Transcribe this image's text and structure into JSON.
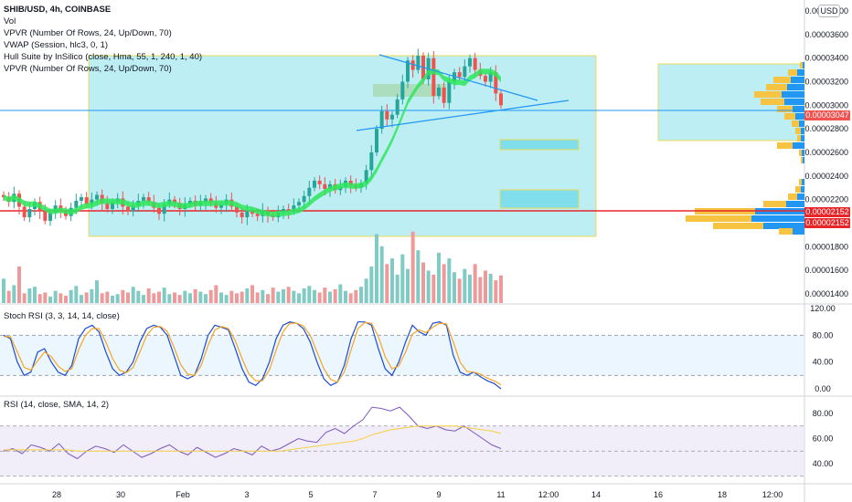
{
  "header": {
    "symbol_line": "SHIB/USD, 4h, COINBASE",
    "indicators": [
      "Vol",
      "VPVR (Number Of Rows, 24, Up/Down, 70)",
      "VWAP (Session, hlc3, 0, 1)",
      "Hull Suite by InSilico (close, Hma, 55, 1, 240, 1, 40)",
      "VPVR (Number Of Rows, 24, Up/Down, 70)"
    ]
  },
  "currency_badge": "USD",
  "price_tags": {
    "current": "0.00003047",
    "line1": "0.00002152",
    "line2": "0.00002152"
  },
  "colors": {
    "up": "#26a69a",
    "down": "#ef5350",
    "hull": "#2ee65a",
    "zone_fill": "#b2ebf2",
    "zone_border": "#e8dc5a",
    "trend": "#2196f3",
    "stoch_k": "#1e4bd2",
    "stoch_d": "#f5a623",
    "rsi": "#7e57c2",
    "rsi_ma": "#f5d142"
  },
  "chart_data": [
    {
      "type": "candlestick",
      "title": "SHIB/USD, 4h, COINBASE",
      "y_ticks": [
        "0.00003800",
        "0.00003600",
        "0.00003400",
        "0.00003200",
        "0.00003000",
        "0.00002800",
        "0.00002600",
        "0.00002400",
        "0.00002200",
        "0.00002000",
        "0.00001800",
        "0.00001600",
        "0.00001400"
      ],
      "x_ticks": [
        "28",
        "30",
        "Feb",
        "3",
        "5",
        "7",
        "9",
        "11",
        "12:00",
        "14",
        "16",
        "18",
        "12:00"
      ],
      "ylim": [
        1.34e-05,
        3.98e-05
      ],
      "close": [
        2.22,
        2.18,
        2.25,
        2.14,
        2.05,
        2.12,
        2.18,
        2.1,
        2.02,
        2.09,
        2.15,
        2.11,
        2.06,
        2.13,
        2.19,
        2.22,
        2.16,
        2.2,
        2.24,
        2.17,
        2.12,
        2.18,
        2.21,
        2.14,
        2.1,
        2.15,
        2.19,
        2.22,
        2.18,
        2.13,
        2.08,
        2.16,
        2.2,
        2.17,
        2.12,
        2.16,
        2.19,
        2.15,
        2.18,
        2.21,
        2.17,
        2.13,
        2.16,
        2.2,
        2.14,
        2.09,
        2.05,
        2.1,
        2.08,
        2.06,
        2.11,
        2.07,
        2.05,
        2.09,
        2.12,
        2.1,
        2.15,
        2.18,
        2.23,
        2.3,
        2.36,
        2.33,
        2.29,
        2.33,
        2.28,
        2.31,
        2.36,
        2.32,
        2.3,
        2.34,
        2.45,
        2.6,
        2.8,
        2.95,
        2.88,
        2.92,
        3.05,
        3.2,
        3.38,
        3.3,
        3.42,
        3.22,
        3.4,
        3.08,
        3.15,
        3.02,
        3.2,
        3.28,
        3.24,
        3.33,
        3.4,
        3.3,
        3.25,
        3.2,
        3.28,
        3.1,
        3.0
      ],
      "current_price": 3.047e-05,
      "horizontal_line": 2.152e-05,
      "volume": [
        3.0,
        1.5,
        2.2,
        4.5,
        1.2,
        1.8,
        2.0,
        1.1,
        1.3,
        0.8,
        1.5,
        1.2,
        0.9,
        1.6,
        2.1,
        1.0,
        1.3,
        1.7,
        2.8,
        1.2,
        1.4,
        0.9,
        1.1,
        1.6,
        1.3,
        2.0,
        1.5,
        1.0,
        1.8,
        1.2,
        1.4,
        1.9,
        1.1,
        1.3,
        1.0,
        1.5,
        1.2,
        1.7,
        1.4,
        1.1,
        1.6,
        2.2,
        1.3,
        1.0,
        1.5,
        1.2,
        1.4,
        1.8,
        2.2,
        1.3,
        1.6,
        1.1,
        1.9,
        1.4,
        1.7,
        2.0,
        1.5,
        1.2,
        1.8,
        2.1,
        1.6,
        1.3,
        1.9,
        1.4,
        1.7,
        2.3,
        1.5,
        1.2,
        1.6,
        2.0,
        3.0,
        4.5,
        8.5,
        7.0,
        4.8,
        5.5,
        3.5,
        6.0,
        4.2,
        8.8,
        6.5,
        5.0,
        4.0,
        3.5,
        6.2,
        4.8,
        5.5,
        3.8,
        3.0,
        4.2,
        3.5,
        4.8,
        3.2,
        4.0,
        3.6,
        2.8,
        3.4
      ]
    },
    {
      "type": "line",
      "title": "Stoch RSI (3, 3, 14, 14, close)",
      "y_ticks": [
        "120.00",
        "80.00",
        "40.00",
        "0.00"
      ],
      "ylim": [
        -5,
        125
      ],
      "series": [
        {
          "values": [
            80,
            75,
            40,
            20,
            25,
            55,
            60,
            40,
            25,
            20,
            35,
            75,
            90,
            95,
            85,
            55,
            30,
            20,
            25,
            40,
            70,
            90,
            95,
            92,
            80,
            50,
            20,
            15,
            20,
            45,
            80,
            95,
            92,
            88,
            60,
            30,
            10,
            5,
            15,
            40,
            75,
            95,
            100,
            98,
            90,
            70,
            40,
            15,
            5,
            10,
            35,
            75,
            100,
            100,
            95,
            60,
            30,
            20,
            40,
            70,
            95,
            85,
            80,
            98,
            100,
            95,
            50,
            25,
            20,
            25,
            18,
            12,
            8,
            0
          ]
        },
        {
          "values": [
            78,
            78,
            55,
            32,
            28,
            42,
            55,
            48,
            34,
            26,
            30,
            58,
            80,
            90,
            90,
            70,
            45,
            28,
            24,
            32,
            55,
            80,
            92,
            93,
            86,
            62,
            36,
            22,
            20,
            35,
            65,
            88,
            93,
            90,
            72,
            45,
            22,
            12,
            12,
            28,
            58,
            85,
            98,
            98,
            94,
            80,
            55,
            30,
            14,
            10,
            25,
            58,
            90,
            99,
            98,
            78,
            48,
            30,
            34,
            55,
            82,
            88,
            84,
            92,
            98,
            97,
            70,
            40,
            26,
            25,
            22,
            16,
            12,
            6
          ]
        }
      ]
    },
    {
      "type": "line",
      "title": "RSI (14, close, SMA, 14, 2)",
      "y_ticks": [
        "80.00",
        "60.00",
        "40.00"
      ],
      "ylim": [
        31,
        87
      ],
      "series": [
        {
          "values": [
            50,
            52,
            48,
            55,
            53,
            50,
            56,
            48,
            44,
            50,
            54,
            52,
            49,
            55,
            50,
            45,
            48,
            52,
            55,
            50,
            47,
            53,
            49,
            45,
            48,
            52,
            50,
            47,
            54,
            50,
            52,
            56,
            60,
            58,
            57,
            65,
            68,
            64,
            70,
            75,
            85,
            84,
            82,
            85,
            78,
            70,
            68,
            70,
            67,
            66,
            70,
            65,
            60,
            55,
            52
          ]
        },
        {
          "values": [
            51,
            51,
            51,
            51,
            51,
            51,
            51,
            51,
            50,
            50,
            50,
            50,
            50,
            50,
            50,
            50,
            50,
            50,
            50,
            50,
            50,
            50,
            50,
            50,
            50,
            50,
            50,
            50,
            50,
            50,
            50,
            51,
            52,
            53,
            54,
            55,
            56,
            57,
            58,
            60,
            63,
            65,
            67,
            68,
            69,
            70,
            70,
            70,
            70,
            70,
            69,
            68,
            67,
            66,
            64
          ]
        }
      ]
    }
  ]
}
